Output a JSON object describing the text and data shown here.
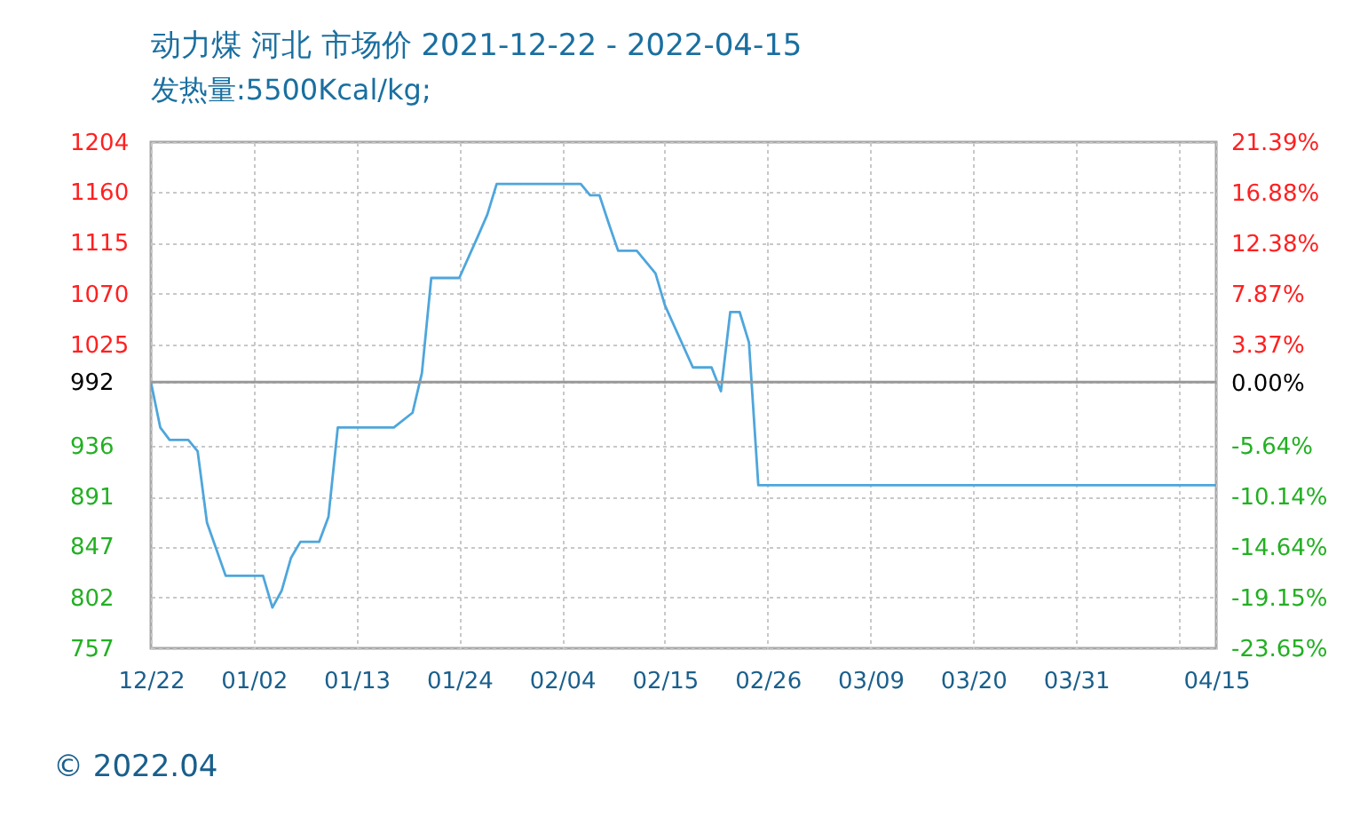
{
  "chart_data": {
    "type": "line",
    "title": "动力煤 河北 市场价 2021-12-22 - 2022-04-15",
    "subtitle": "发热量:5500Kcal/kg;",
    "annotations": [
      "© 2022.04"
    ],
    "x": [
      "2021-12-22",
      "2021-12-23",
      "2021-12-24",
      "2021-12-26",
      "2021-12-27",
      "2021-12-28",
      "2021-12-30",
      "2022-01-03",
      "2022-01-04",
      "2022-01-05",
      "2022-01-06",
      "2022-01-07",
      "2022-01-09",
      "2022-01-10",
      "2022-01-11",
      "2022-01-17",
      "2022-01-19",
      "2022-01-20",
      "2022-01-21",
      "2022-01-24",
      "2022-01-26",
      "2022-01-27",
      "2022-01-28",
      "2022-02-06",
      "2022-02-07",
      "2022-02-08",
      "2022-02-09",
      "2022-02-10",
      "2022-02-12",
      "2022-02-14",
      "2022-02-15",
      "2022-02-18",
      "2022-02-20",
      "2022-02-21",
      "2022-02-22",
      "2022-02-23",
      "2022-02-24",
      "2022-02-25",
      "2022-04-15"
    ],
    "series": [
      {
        "color": "#4ea6dc",
        "values": [
          992,
          952,
          941,
          941,
          931,
          868,
          821,
          821,
          793,
          808,
          837,
          851,
          851,
          873,
          952,
          952,
          965,
          1000,
          1084,
          1084,
          1121,
          1140,
          1167,
          1167,
          1157,
          1157,
          1132,
          1108,
          1108,
          1088,
          1060,
          1005,
          1005,
          984,
          1054,
          1054,
          1027,
          901,
          901
        ]
      }
    ],
    "xlim": [
      "2021-12-22",
      "2022-04-15"
    ],
    "xticks": [
      {
        "value": "2021-12-22",
        "label": "12/22"
      },
      {
        "value": "2022-01-02",
        "label": "01/02"
      },
      {
        "value": "2022-01-13",
        "label": "01/13"
      },
      {
        "value": "2022-01-24",
        "label": "01/24"
      },
      {
        "value": "2022-02-04",
        "label": "02/04"
      },
      {
        "value": "2022-02-15",
        "label": "02/15"
      },
      {
        "value": "2022-02-26",
        "label": "02/26"
      },
      {
        "value": "2022-03-09",
        "label": "03/09"
      },
      {
        "value": "2022-03-20",
        "label": "03/20"
      },
      {
        "value": "2022-03-31",
        "label": "03/31"
      },
      {
        "value": "2022-04-11",
        "label": null
      },
      {
        "value": "2022-04-15",
        "label": "04/15"
      }
    ],
    "ylim": [
      757,
      1204
    ],
    "yticks": [
      1204,
      1160,
      1115,
      1070,
      1025,
      992,
      936,
      891,
      847,
      802,
      757
    ],
    "y2lim": [
      -23.65,
      21.39
    ],
    "y2ticks": [
      {
        "value": 21.39,
        "label": "21.39%"
      },
      {
        "value": 16.88,
        "label": "16.88%"
      },
      {
        "value": 12.38,
        "label": "12.38%"
      },
      {
        "value": 7.87,
        "label": "7.87%"
      },
      {
        "value": 3.37,
        "label": "3.37%"
      },
      {
        "value": 0,
        "label": "0.00%"
      },
      {
        "value": -5.64,
        "label": "-5.64%"
      },
      {
        "value": -10.14,
        "label": "-10.14%"
      },
      {
        "value": -14.64,
        "label": "-14.64%"
      },
      {
        "value": -19.15,
        "label": "-19.15%"
      },
      {
        "value": -23.65,
        "label": "-23.65%"
      }
    ],
    "ref_lines": [
      {
        "axis": "y",
        "value": 992,
        "color": "#999999"
      }
    ],
    "grid": true,
    "marker": "none",
    "line_style": "solid"
  }
}
